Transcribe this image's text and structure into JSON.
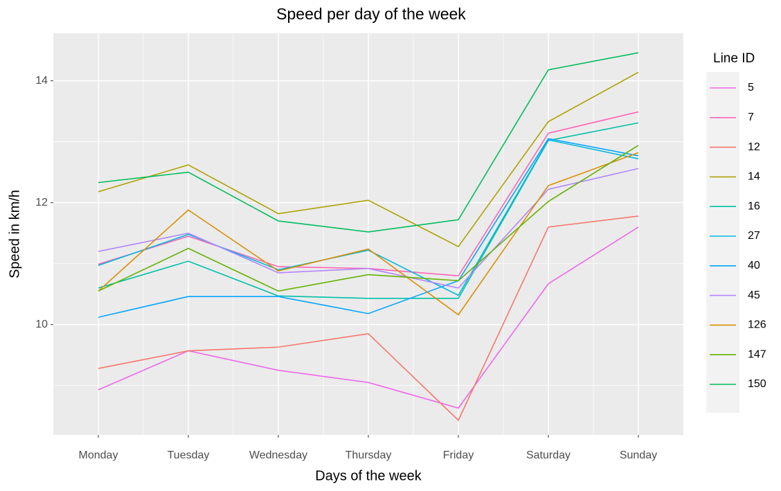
{
  "chart_data": {
    "type": "line",
    "title": "Speed per day of the week",
    "x_label": "Days of the week",
    "y_label": "Speed in km/h",
    "legend_title": "Line ID",
    "categories": [
      "Monday",
      "Tuesday",
      "Wednesday",
      "Thursday",
      "Friday",
      "Saturday",
      "Sunday"
    ],
    "ylim": [
      8.19,
      14.78
    ],
    "yticks": [
      10,
      12,
      14
    ],
    "minor_yticks": [
      9,
      11,
      13
    ],
    "grid": true,
    "series": [
      {
        "name": "5",
        "color": "#EF67EB",
        "values": [
          8.93,
          9.57,
          9.25,
          9.05,
          8.63,
          10.67,
          11.6
        ]
      },
      {
        "name": "7",
        "color": "#FF63B6",
        "values": [
          10.99,
          11.45,
          10.95,
          10.92,
          10.8,
          13.14,
          13.49
        ]
      },
      {
        "name": "12",
        "color": "#F8766D",
        "values": [
          9.28,
          9.57,
          9.63,
          9.85,
          8.43,
          11.6,
          11.78
        ]
      },
      {
        "name": "14",
        "color": "#AEA200",
        "values": [
          12.18,
          12.62,
          11.82,
          12.04,
          11.28,
          13.33,
          14.14
        ]
      },
      {
        "name": "16",
        "color": "#00C1A7",
        "values": [
          10.6,
          11.04,
          10.47,
          10.43,
          10.43,
          13.02,
          13.31
        ]
      },
      {
        "name": "27",
        "color": "#00BADE",
        "values": [
          10.97,
          11.48,
          10.9,
          11.22,
          10.48,
          13.03,
          12.72
        ]
      },
      {
        "name": "40",
        "color": "#00A6FF",
        "values": [
          10.12,
          10.46,
          10.46,
          10.18,
          10.72,
          13.05,
          12.77
        ]
      },
      {
        "name": "45",
        "color": "#B385FF",
        "values": [
          11.2,
          11.5,
          10.85,
          10.92,
          10.6,
          12.22,
          12.56
        ]
      },
      {
        "name": "126",
        "color": "#DB8E00",
        "values": [
          10.55,
          11.88,
          10.88,
          11.24,
          10.16,
          12.28,
          12.82
        ]
      },
      {
        "name": "147",
        "color": "#64B200",
        "values": [
          10.55,
          11.25,
          10.55,
          10.82,
          10.72,
          12.02,
          12.94
        ]
      },
      {
        "name": "150",
        "color": "#00BD5C",
        "values": [
          12.33,
          12.5,
          11.7,
          11.52,
          11.72,
          14.18,
          14.46
        ]
      }
    ]
  }
}
